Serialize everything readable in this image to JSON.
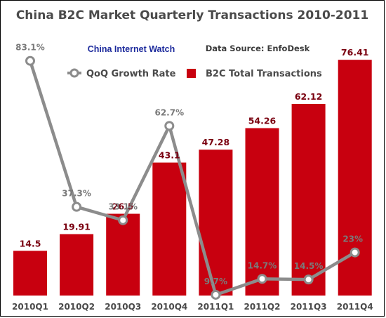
{
  "title": "China B2C Market Quarterly Transactions 2010-2011",
  "brand": "China Internet Watch",
  "source": "Data Source: EnfoDesk",
  "colors": {
    "bar": "#c8000f",
    "line": "#8c8c8c",
    "marker_fill": "#ffffff"
  },
  "chart_data": {
    "type": "bar",
    "title": "China B2C Market Quarterly Transactions 2010-2011",
    "categories": [
      "2010Q1",
      "2010Q2",
      "2010Q3",
      "2010Q4",
      "2011Q1",
      "2011Q2",
      "2011Q3",
      "2011Q4"
    ],
    "series": [
      {
        "name": "B2C Total Transactions",
        "type": "bar",
        "values": [
          14.5,
          19.91,
          26.5,
          43.1,
          47.28,
          54.26,
          62.12,
          76.41
        ],
        "labels": [
          "14.5",
          "19.91",
          "26.5",
          "43.1",
          "47.28",
          "54.26",
          "62.12",
          "76.41"
        ]
      },
      {
        "name": "QoQ Growth Rate",
        "type": "line",
        "values": [
          83.1,
          37.3,
          33.1,
          62.7,
          9.7,
          14.7,
          14.5,
          23
        ],
        "labels": [
          "83.1%",
          "37.3%",
          "33.1%",
          "62.7%",
          "9.7%",
          "14.7%",
          "14.5%",
          "23%"
        ]
      }
    ],
    "legend": {
      "position": "top"
    },
    "grid": false
  }
}
